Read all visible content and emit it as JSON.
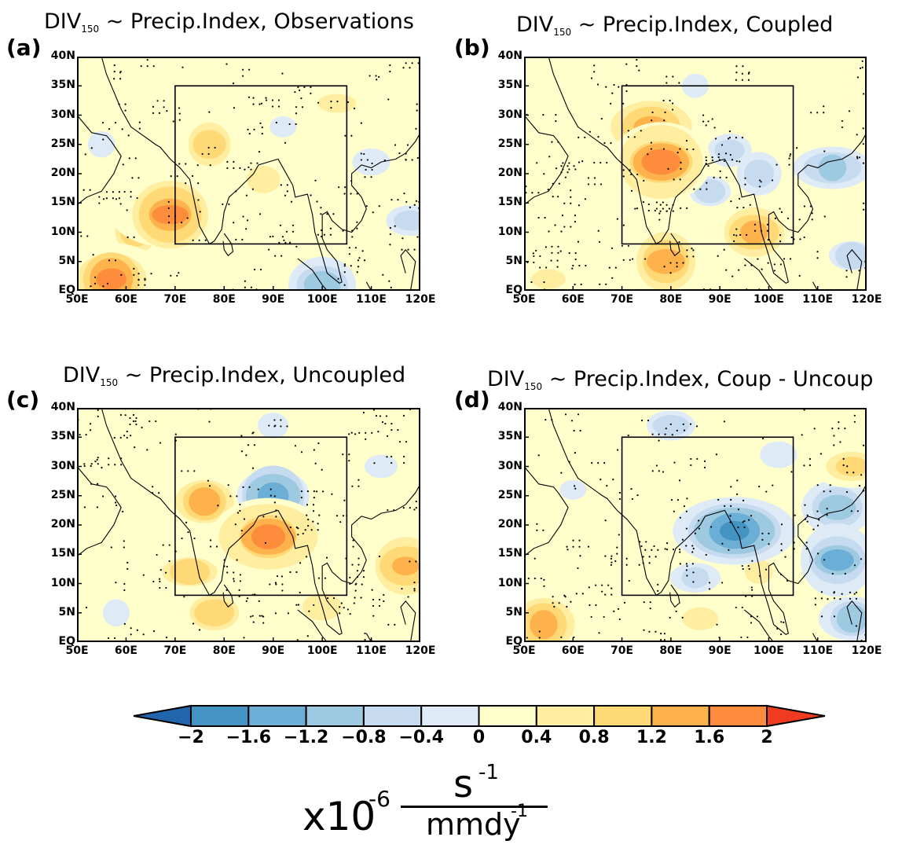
{
  "panels": [
    {
      "id": "a",
      "label": "(a)",
      "title_main": "DIV",
      "title_sub": "150",
      "title_rest": " ~ Precip.Index, Observations"
    },
    {
      "id": "b",
      "label": "(b)",
      "title_main": "DIV",
      "title_sub": "150",
      "title_rest": " ~ Precip.Index, Coupled"
    },
    {
      "id": "c",
      "label": "(c)",
      "title_main": "DIV",
      "title_sub": "150",
      "title_rest": " ~ Precip.Index, Uncoupled"
    },
    {
      "id": "d",
      "label": "(d)",
      "title_main": "DIV",
      "title_sub": "150",
      "title_rest": " ~ Precip.Index, Coup - Uncoup"
    }
  ],
  "axes": {
    "lat_labels": [
      "40N",
      "35N",
      "30N",
      "25N",
      "20N",
      "15N",
      "10N",
      "5N",
      "EQ"
    ],
    "lon_labels": [
      "50E",
      "60E",
      "70E",
      "80E",
      "90E",
      "100E",
      "110E",
      "120E"
    ],
    "lat_range": [
      0,
      40
    ],
    "lon_range": [
      50,
      120
    ]
  },
  "box_region": {
    "lon": [
      70,
      105
    ],
    "lat": [
      8,
      35
    ]
  },
  "colorbar": {
    "levels": [
      "-2",
      "-1.6",
      "-1.2",
      "-0.8",
      "-0.4",
      "0",
      "0.4",
      "0.8",
      "1.2",
      "1.6",
      "2"
    ],
    "colors": [
      "#2166ac",
      "#4393c3",
      "#6baed6",
      "#9ecae1",
      "#c6dbef",
      "#deebf7",
      "#ffffcc",
      "#ffeda0",
      "#fed976",
      "#feb24c",
      "#fd8d3c",
      "#f03b20"
    ]
  },
  "unit": {
    "prefix": "x10",
    "exp": "-6",
    "num": "s",
    "num_exp": "-1",
    "den": "mmdy",
    "den_exp": "-1"
  },
  "fields": {
    "a": [
      {
        "lon": 69,
        "lat": 13,
        "v": 2.0
      },
      {
        "lon": 57,
        "lat": 2,
        "v": 2.0
      },
      {
        "lon": 62,
        "lat": 10,
        "v": 1.2
      },
      {
        "lon": 77,
        "lat": 25,
        "v": 1.2
      },
      {
        "lon": 88,
        "lat": 19,
        "v": 0.8
      },
      {
        "lon": 103,
        "lat": 32,
        "v": 0.8
      },
      {
        "lon": 100,
        "lat": 1,
        "v": -1.2
      },
      {
        "lon": 92,
        "lat": 28,
        "v": -0.4
      },
      {
        "lon": 118,
        "lat": 12,
        "v": -0.8
      },
      {
        "lon": 110,
        "lat": 22,
        "v": -0.4
      },
      {
        "lon": 55,
        "lat": 25,
        "v": -0.4
      },
      {
        "lon": 84,
        "lat": 6,
        "v": 0.4
      }
    ],
    "b": [
      {
        "lon": 78,
        "lat": 22,
        "v": 2.0
      },
      {
        "lon": 76,
        "lat": 28,
        "v": 1.6
      },
      {
        "lon": 79,
        "lat": 5,
        "v": 1.6
      },
      {
        "lon": 97,
        "lat": 10,
        "v": 1.6
      },
      {
        "lon": 55,
        "lat": 2,
        "v": 0.8
      },
      {
        "lon": 92,
        "lat": 24,
        "v": -0.8
      },
      {
        "lon": 113,
        "lat": 21,
        "v": -1.2
      },
      {
        "lon": 88,
        "lat": 17,
        "v": -0.8
      },
      {
        "lon": 98,
        "lat": 20,
        "v": -0.8
      },
      {
        "lon": 117,
        "lat": 6,
        "v": -0.8
      },
      {
        "lon": 85,
        "lat": 35,
        "v": -0.4
      },
      {
        "lon": 60,
        "lat": 12,
        "v": 0.4
      }
    ],
    "c": [
      {
        "lon": 89,
        "lat": 18,
        "v": 2.0
      },
      {
        "lon": 76,
        "lat": 24,
        "v": 1.6
      },
      {
        "lon": 73,
        "lat": 12,
        "v": 1.2
      },
      {
        "lon": 78,
        "lat": 5,
        "v": 1.2
      },
      {
        "lon": 117,
        "lat": 13,
        "v": 1.6
      },
      {
        "lon": 90,
        "lat": 25,
        "v": -1.6
      },
      {
        "lon": 100,
        "lat": 6,
        "v": 0.8
      },
      {
        "lon": 58,
        "lat": 5,
        "v": -0.4
      },
      {
        "lon": 112,
        "lat": 30,
        "v": -0.4
      },
      {
        "lon": 55,
        "lat": 30,
        "v": 0.4
      },
      {
        "lon": 90,
        "lat": 37,
        "v": -0.4
      }
    ],
    "d": [
      {
        "lon": 93,
        "lat": 19,
        "v": -2.0
      },
      {
        "lon": 114,
        "lat": 14,
        "v": -1.6
      },
      {
        "lon": 114,
        "lat": 23,
        "v": -1.2
      },
      {
        "lon": 117,
        "lat": 4,
        "v": -1.2
      },
      {
        "lon": 54,
        "lat": 3,
        "v": 1.6
      },
      {
        "lon": 117,
        "lat": 30,
        "v": 1.2
      },
      {
        "lon": 85,
        "lat": 11,
        "v": -0.8
      },
      {
        "lon": 80,
        "lat": 37,
        "v": -0.8
      },
      {
        "lon": 98,
        "lat": 12,
        "v": 0.8
      },
      {
        "lon": 86,
        "lat": 4,
        "v": 0.8
      },
      {
        "lon": 60,
        "lat": 26,
        "v": -0.4
      },
      {
        "lon": 102,
        "lat": 32,
        "v": -0.4
      }
    ]
  }
}
